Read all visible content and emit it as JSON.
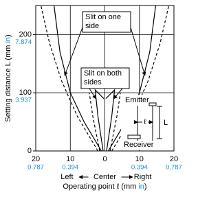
{
  "chart_data": {
    "type": "line",
    "y_label": {
      "text": "Setting distance L (mm ",
      "unit": "in",
      "close": ")"
    },
    "x_label": {
      "text": "Operating point ℓ (mm ",
      "unit": "in",
      "close": ")"
    },
    "direction_labels": {
      "left": "Left",
      "center": "Center",
      "right": "Right"
    },
    "xlim": [
      -20,
      20
    ],
    "ylim": [
      0,
      250
    ],
    "xticks": [
      {
        "value": -20,
        "label": "20"
      },
      {
        "value": -10,
        "label": "10"
      },
      0,
      10,
      20
    ],
    "xticks2": [
      {
        "value": -20,
        "label": "0.787"
      },
      {
        "value": -10,
        "label": "0.394"
      },
      {
        "value": 10,
        "label": "0.394"
      },
      {
        "value": 20,
        "label": "0.787"
      }
    ],
    "yticks": [
      0,
      100,
      200
    ],
    "y2ticks": [
      {
        "value": 100,
        "label": "3.937"
      },
      {
        "value": 200,
        "label": "7.874"
      }
    ],
    "grid": true,
    "series": [
      {
        "color": "#000",
        "dashed": true,
        "x": [
          -2,
          -8,
          -12.5,
          -16,
          -18.5
        ],
        "values": [
          0,
          60,
          120,
          185,
          250
        ]
      },
      {
        "color": "#000",
        "dashed": true,
        "x": [
          2,
          8,
          12.5,
          16,
          18.5
        ],
        "values": [
          0,
          60,
          120,
          185,
          250
        ]
      },
      {
        "color": "#000",
        "dashed": false,
        "x": [
          -1,
          -6,
          -10,
          -13,
          -14.7
        ],
        "values": [
          0,
          50,
          100,
          170,
          250
        ]
      },
      {
        "color": "#000",
        "dashed": false,
        "x": [
          1,
          6,
          10,
          13,
          14.7
        ],
        "values": [
          0,
          50,
          100,
          170,
          250
        ]
      },
      {
        "color": "#000",
        "dashed": true,
        "x": [
          -1.5,
          -3.5,
          -4.5
        ],
        "values": [
          0,
          60,
          100
        ]
      },
      {
        "color": "#000",
        "dashed": true,
        "x": [
          1.5,
          3.5,
          4.5
        ],
        "values": [
          0,
          60,
          100
        ]
      },
      {
        "color": "#000",
        "dashed": false,
        "x": [
          -0.5,
          -2,
          -2.8,
          -0.3
        ],
        "values": [
          0,
          60,
          105,
          90
        ]
      },
      {
        "color": "#000",
        "dashed": false,
        "x": [
          0.5,
          2,
          2.8,
          0.3
        ],
        "values": [
          0,
          60,
          105,
          90
        ]
      }
    ],
    "annotations": [
      {
        "lines": [
          "Slit on one",
          "side"
        ]
      },
      {
        "lines": [
          "Slit on both",
          "sides"
        ]
      }
    ],
    "inset": {
      "emitter": "Emitter",
      "receiver": "Receiver",
      "l_small": "ℓ",
      "l_big": "L"
    }
  }
}
